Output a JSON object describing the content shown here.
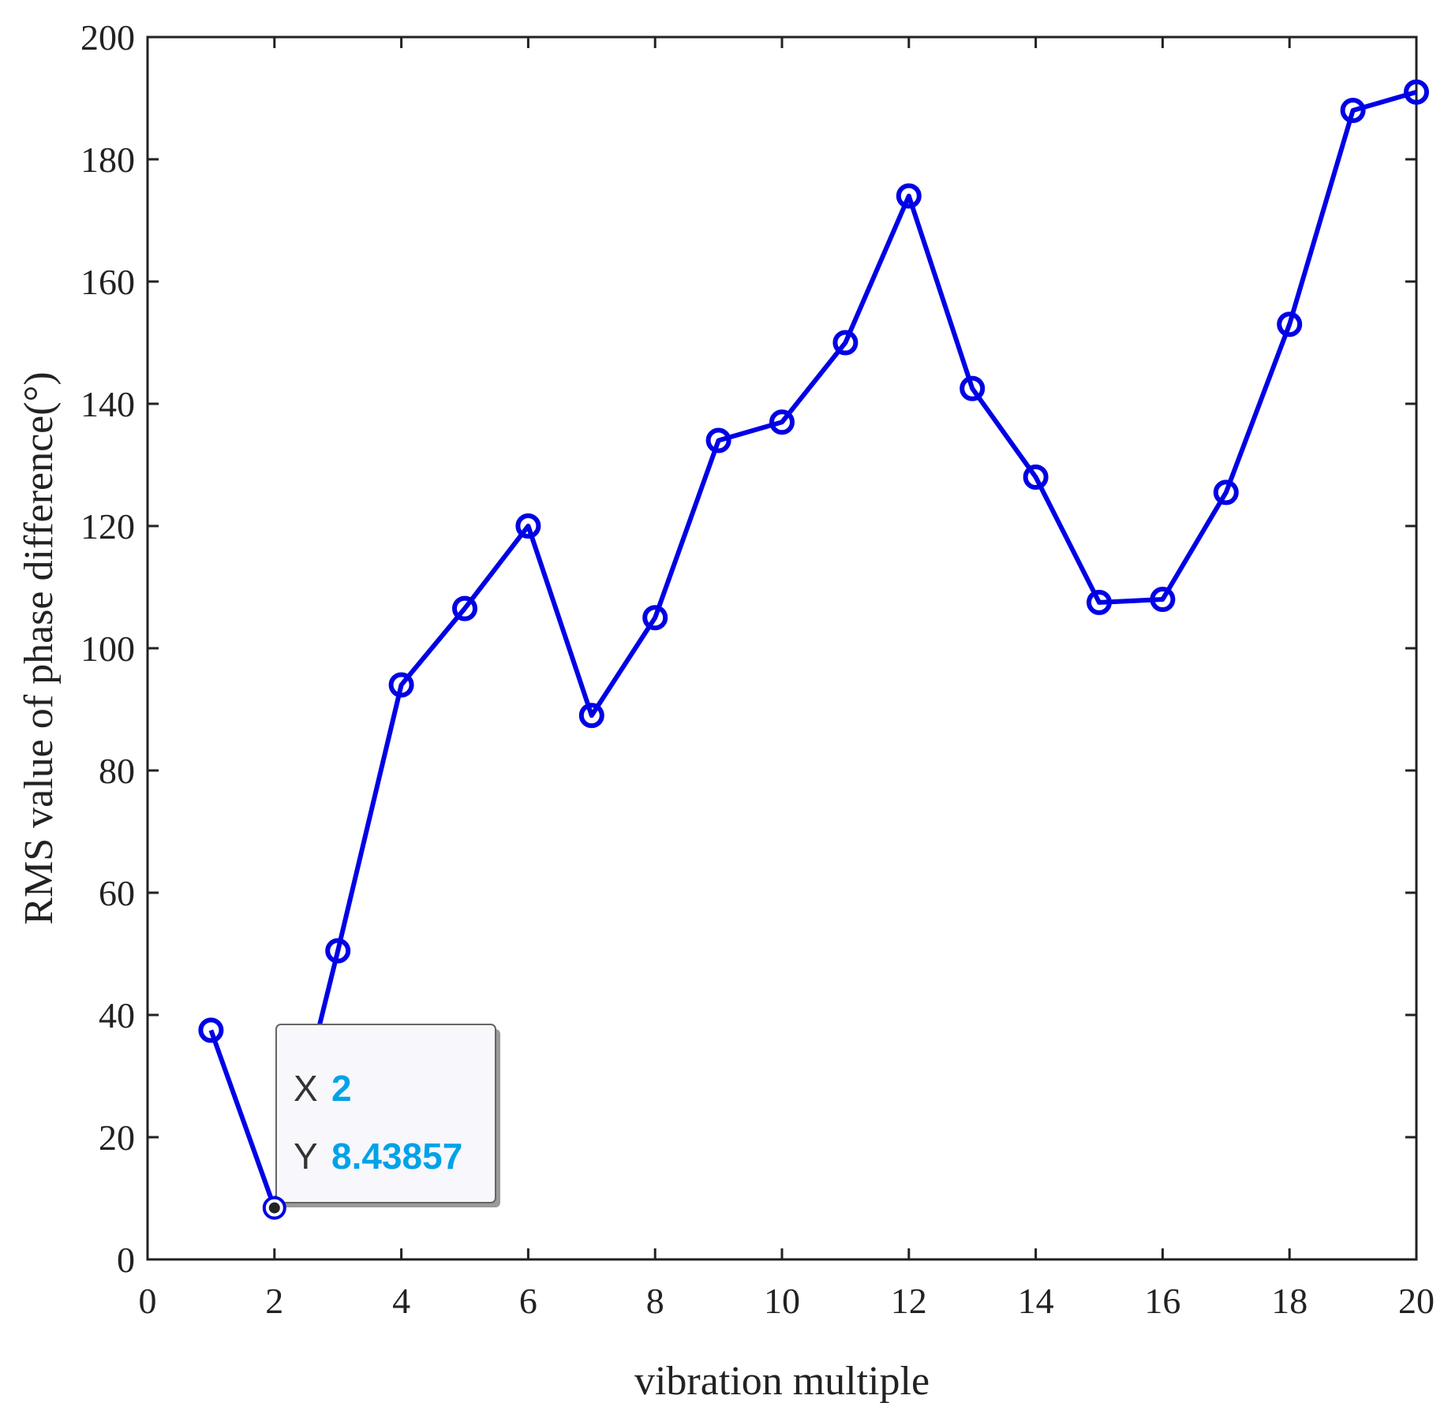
{
  "chart_data": {
    "type": "line",
    "xlabel": "vibration multiple",
    "ylabel": "RMS value of phase difference(°)",
    "xlim": [
      0,
      20
    ],
    "ylim": [
      0,
      200
    ],
    "xticks": [
      0,
      2,
      4,
      6,
      8,
      10,
      12,
      14,
      16,
      18,
      20
    ],
    "yticks": [
      0,
      20,
      40,
      60,
      80,
      100,
      120,
      140,
      160,
      180,
      200
    ],
    "grid": false,
    "marker": "circle",
    "line_color": "#0000e6",
    "series": [
      {
        "x": [
          1,
          2,
          3,
          4,
          5,
          6,
          7,
          8,
          9,
          10,
          11,
          12,
          13,
          14,
          15,
          16,
          17,
          18,
          19,
          20
        ],
        "values": [
          37.5,
          8.43857,
          50.5,
          94,
          106.5,
          120,
          89,
          105,
          134,
          137,
          150,
          174,
          142.5,
          128,
          107.5,
          108,
          125.5,
          153,
          188,
          191
        ]
      }
    ]
  },
  "datatip": {
    "x_key": "X",
    "x_value": "2",
    "y_key": "Y",
    "y_value": "8.43857",
    "value_color": "#00a2e8",
    "anchor_index": 1
  }
}
